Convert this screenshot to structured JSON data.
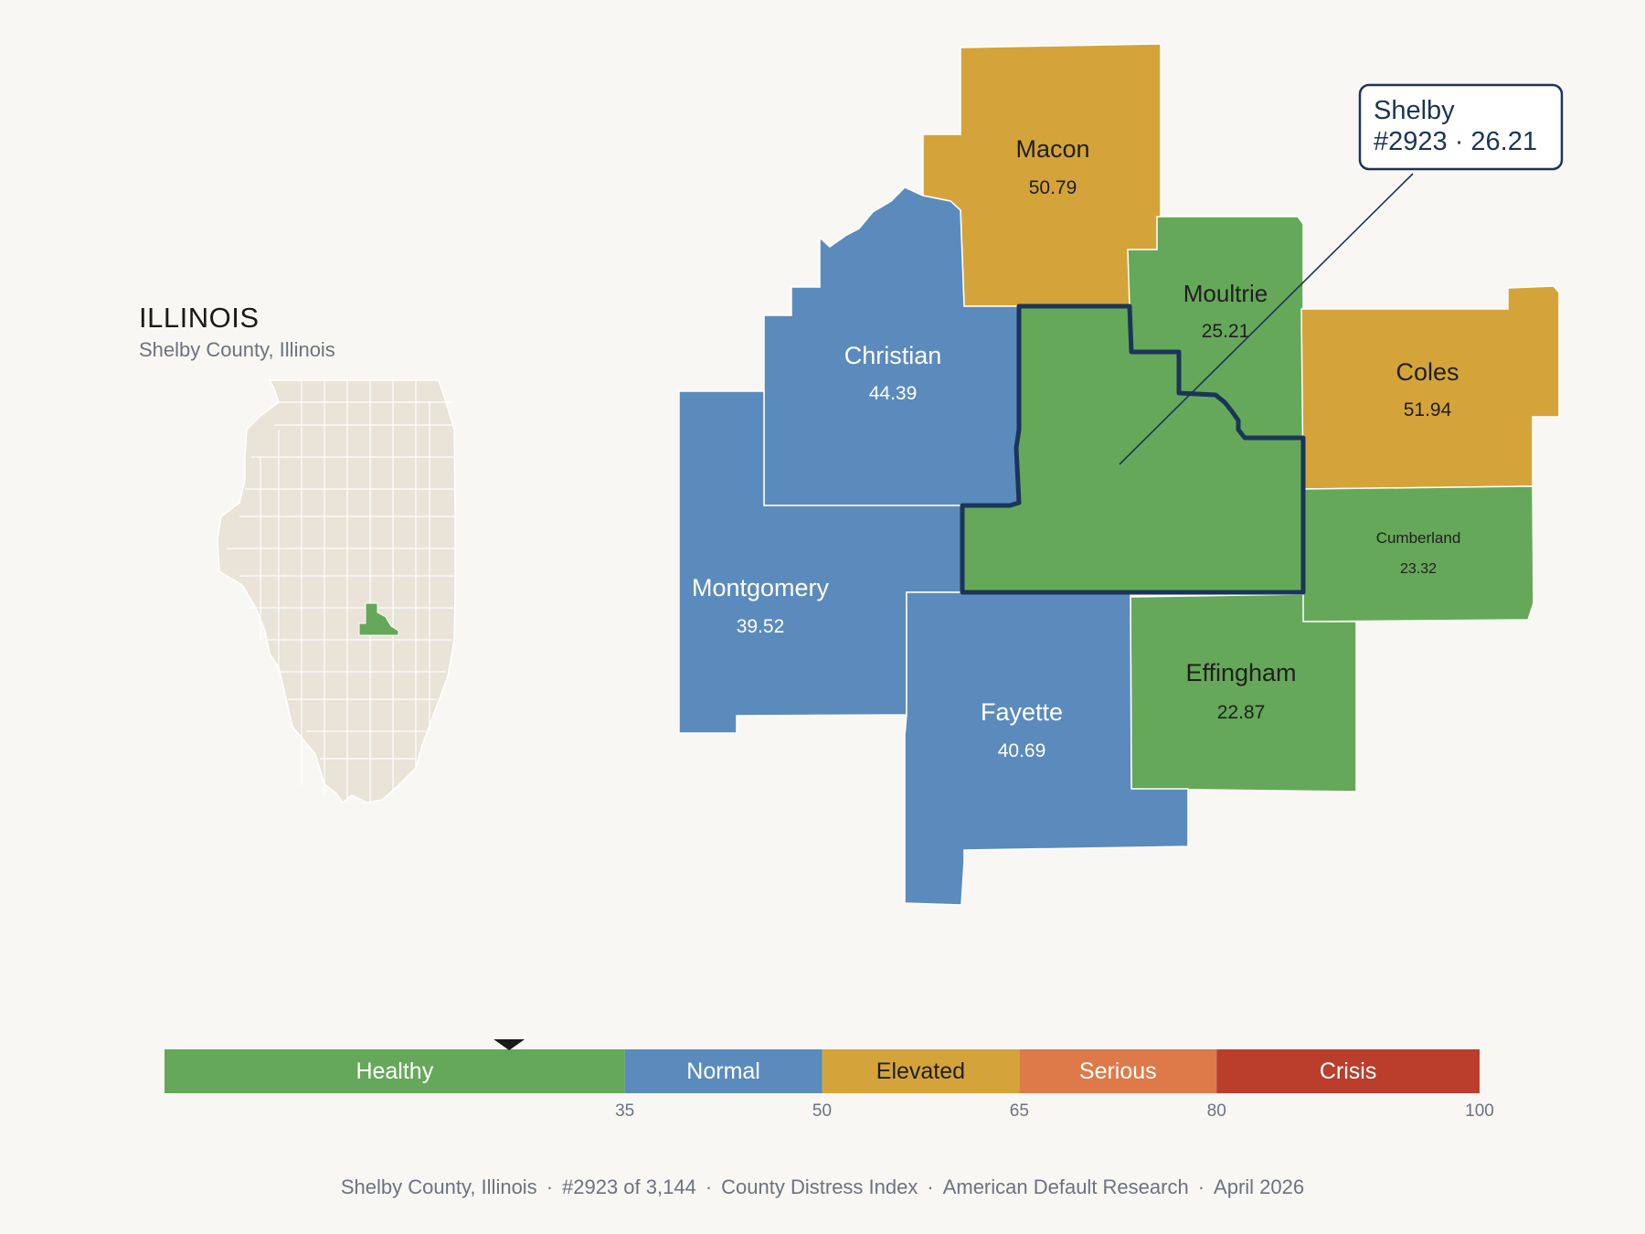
{
  "inset": {
    "state_name": "ILLINOIS",
    "subtitle": "Shelby County, Illinois"
  },
  "colors": {
    "healthy": "#66a859",
    "normal": "#5b8bbc",
    "elevated": "#d4a43a",
    "serious": "#de7a4a",
    "crisis": "#bb3d2c",
    "inset_base": "#e9e3d8",
    "outline": "#1b3558"
  },
  "counties": [
    {
      "name": "Macon",
      "value": "50.79",
      "status": "elevated"
    },
    {
      "name": "Christian",
      "value": "44.39",
      "status": "normal"
    },
    {
      "name": "Moultrie",
      "value": "25.21",
      "status": "healthy"
    },
    {
      "name": "Coles",
      "value": "51.94",
      "status": "elevated"
    },
    {
      "name": "Montgomery",
      "value": "39.52",
      "status": "normal"
    },
    {
      "name": "Cumberland",
      "value": "23.32",
      "status": "healthy"
    },
    {
      "name": "Effingham",
      "value": "22.87",
      "status": "healthy"
    },
    {
      "name": "Fayette",
      "value": "40.69",
      "status": "normal"
    },
    {
      "name": "Shelby",
      "value": "26.21",
      "status": "healthy",
      "selected": true
    }
  ],
  "callout": {
    "line1": "Shelby",
    "line2": "#2923 · 26.21"
  },
  "scale": {
    "marker_value": 26.21,
    "segments": [
      {
        "label": "Healthy",
        "from": 0,
        "to": 35,
        "status": "healthy"
      },
      {
        "label": "Normal",
        "from": 35,
        "to": 50,
        "status": "normal"
      },
      {
        "label": "Elevated",
        "from": 50,
        "to": 65,
        "status": "elevated"
      },
      {
        "label": "Serious",
        "from": 65,
        "to": 80,
        "status": "serious"
      },
      {
        "label": "Crisis",
        "from": 80,
        "to": 100,
        "status": "crisis"
      }
    ],
    "ticks": [
      "35",
      "50",
      "65",
      "80",
      "100"
    ]
  },
  "footer": {
    "location": "Shelby County, Illinois",
    "rank": "#2923 of 3,144",
    "index": "County Distress Index",
    "source": "American Default Research",
    "date": "April 2026",
    "separator": "·"
  }
}
